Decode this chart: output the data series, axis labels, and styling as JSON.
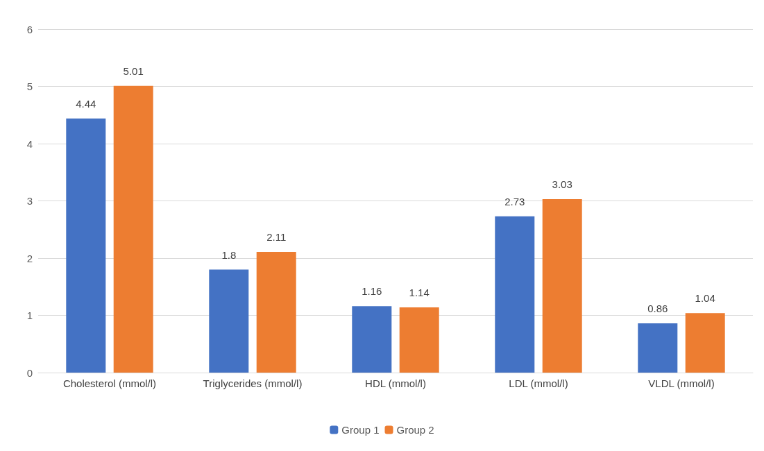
{
  "chart_data": {
    "type": "bar",
    "categories": [
      "Cholesterol (mmol/l)",
      "Triglycerides (mmol/l)",
      "HDL (mmol/l)",
      "LDL (mmol/l)",
      "VLDL (mmol/l)"
    ],
    "series": [
      {
        "name": "Group 1",
        "color": "#4472c4",
        "values": [
          4.44,
          1.8,
          1.16,
          2.73,
          0.86
        ]
      },
      {
        "name": "Group 2",
        "color": "#ed7d31",
        "values": [
          5.01,
          2.11,
          1.14,
          3.03,
          1.04
        ]
      }
    ],
    "ylim": [
      0,
      6
    ],
    "yticks": [
      0,
      1,
      2,
      3,
      4,
      5,
      6
    ],
    "grid": "y",
    "legend": "bottom",
    "data_labels": true
  }
}
